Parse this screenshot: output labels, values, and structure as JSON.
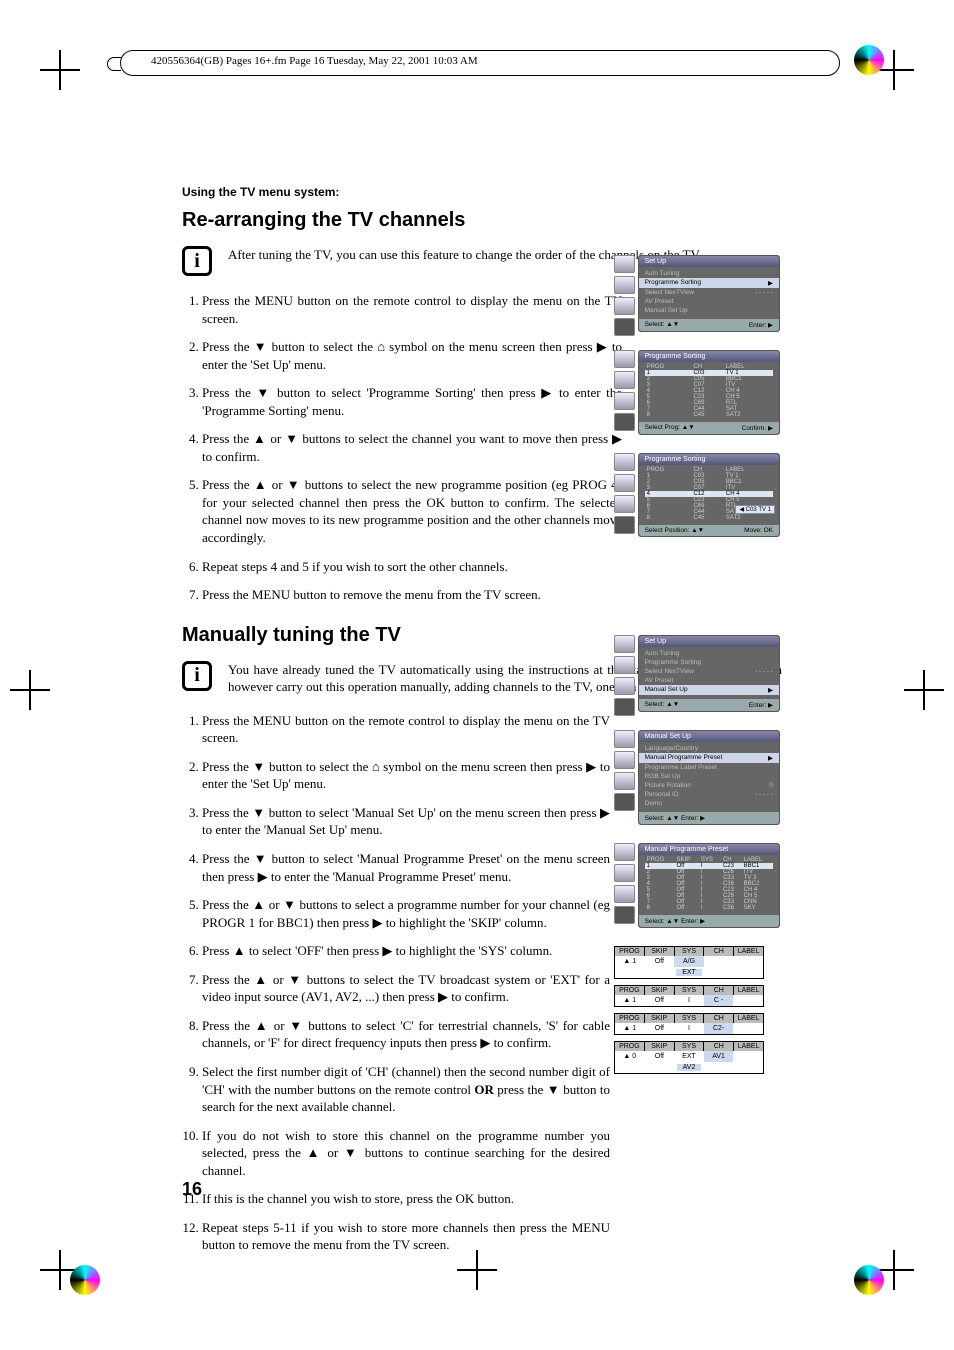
{
  "header_strip": "420556364(GB) Pages 16+.fm  Page 16  Tuesday, May 22, 2001  10:03 AM",
  "section_label": "Using the TV menu system:",
  "h2_rearr": "Re-arranging the TV channels",
  "info_rearr": "After tuning the TV, you can use this feature to change the order of the channels on the TV.",
  "steps_rearr": [
    "Press the MENU button on the remote control to display the menu on the TV screen.",
    "Press the ▼ button to select the ⌂ symbol on the menu screen then press ▶ to enter the 'Set Up' menu.",
    "Press the ▼ button to select 'Programme Sorting' then press ▶ to enter the 'Programme Sorting' menu.",
    "Press the ▲ or ▼ buttons to select the channel you want to move then  press ▶ to confirm.",
    "Press the ▲ or ▼ buttons to select the new programme position (eg PROG 4) for your selected channel then press the OK button to confirm. The selected channel now moves to its new programme position and the other channels move accordingly.",
    "Repeat steps 4 and 5 if you wish to sort the other channels.",
    "Press the MENU button to remove the menu from the TV screen."
  ],
  "h2_manual": "Manually tuning the TV",
  "info_manual": "You have already tuned the TV automatically using the instructions at the start of this manual. You can however carry out this operation manually, adding channels to the TV, one at a time.",
  "steps_manual": [
    "Press the MENU button on the remote control to display the menu on the TV screen.",
    "Press the ▼ button to select the ⌂  symbol on the menu screen then press ▶ to enter the 'Set Up' menu.",
    "Press the ▼ button to select 'Manual Set Up' on the menu screen then press ▶ to enter the 'Manual Set Up' menu.",
    "Press the ▼ button to select 'Manual Programme Preset' on the menu screen then press ▶ to enter the 'Manual Programme Preset' menu.",
    "Press the ▲ or ▼ buttons to select a programme number for your channel (eg PROGR 1 for BBC1) then press ▶ to highlight the 'SKIP' column.",
    "Press ▲ to select 'OFF' then press ▶ to highlight the 'SYS' column.",
    "Press the ▲ or ▼ buttons to select the TV broadcast system or 'EXT' for a video input source (AV1, AV2, ...) then press ▶ to confirm.",
    "Press the ▲ or ▼ buttons to select 'C' for terrestrial channels, 'S' for cable channels, or 'F' for direct frequency inputs then press ▶ to confirm.",
    "Select the first number digit of 'CH' (channel) then the second number digit of 'CH' with the number buttons on the remote control OR press the ▼ button to search for the next available channel.",
    "If you do not wish to store this channel on the programme number you selected, press the ▲ or ▼ buttons to continue searching for the desired channel.",
    "If this is the channel you wish to store, press the OK button.",
    "Repeat steps 5-11 if you wish to store more channels then press the MENU button to remove the menu from the TV screen."
  ],
  "page_number": "16",
  "menu1": {
    "title": "Set Up",
    "items": [
      "Auto Tuning",
      "Programme Sorting",
      "Select NexTView",
      "AV Preset",
      "Manual Set Up"
    ],
    "hi": 1,
    "extra": "- - - - -",
    "foot_l": "Select: ▲▼",
    "foot_r": "Enter: ▶"
  },
  "menu2": {
    "title": "Programme Sorting",
    "cols": [
      "PROG",
      "CH",
      "LABEL"
    ],
    "rows": [
      [
        "1",
        "C03",
        "TV 1"
      ],
      [
        "2",
        "C05",
        "BBC1"
      ],
      [
        "3",
        "C07",
        "ITV"
      ],
      [
        "4",
        "C12",
        "CH 4"
      ],
      [
        "5",
        "C23",
        "CH 5"
      ],
      [
        "6",
        "C69",
        "RTL"
      ],
      [
        "7",
        "C44",
        "SAT"
      ],
      [
        "8",
        "C45",
        "SAT2"
      ]
    ],
    "hi": 0,
    "foot_l": "Select Prog: ▲▼",
    "foot_r": "Confirm: ▶"
  },
  "menu3": {
    "title": "Programme Sorting",
    "cols": [
      "PROG",
      "CH",
      "LABEL"
    ],
    "rows": [
      [
        "1",
        "C03",
        "TV 1"
      ],
      [
        "2",
        "C05",
        "BBC1"
      ],
      [
        "3",
        "C07",
        "ITV"
      ],
      [
        "4",
        "C12",
        "CH 4"
      ],
      [
        "5",
        "C23",
        "CH 5"
      ],
      [
        "6",
        "C69",
        "RTL"
      ],
      [
        "7",
        "C44",
        "SAT"
      ],
      [
        "8",
        "C45",
        "SAT2"
      ]
    ],
    "hi": 3,
    "badge": "C03   TV 1",
    "foot_l": "Select Position: ▲▼",
    "foot_r": "Move: OK"
  },
  "menu4": {
    "title": "Set Up",
    "items": [
      "Auto Tuning",
      "Programme Sorting",
      "Select NexTView",
      "AV Preset",
      "Manual Set Up"
    ],
    "hi": 4,
    "extra": "- - - - -",
    "foot_l": "Select: ▲▼",
    "foot_r": "Enter: ▶"
  },
  "menu5": {
    "title": "Manual Set Up",
    "items": [
      "Language/Country",
      "Manual Programme Preset",
      "Programme Label Preset",
      "RGB Set Up",
      "Picture Rotation",
      "Personal ID",
      "Demo"
    ],
    "hi": 1,
    "rot": "0",
    "pid": "- - - - -",
    "foot_l": "Select: ▲▼ Enter: ▶",
    "foot_r": ""
  },
  "menu6": {
    "title": "Manual Programme Preset",
    "cols": [
      "PROG",
      "SKIP",
      "SYS",
      "CH",
      "LABEL"
    ],
    "rows": [
      [
        "1",
        "Off",
        "I",
        "C23",
        "BBC1"
      ],
      [
        "2",
        "Off",
        "I",
        "C26",
        "ITV"
      ],
      [
        "3",
        "Off",
        "I",
        "C33",
        "TV 3"
      ],
      [
        "4",
        "Off",
        "I",
        "C36",
        "BBC2"
      ],
      [
        "5",
        "Off",
        "I",
        "C23",
        "CH 4"
      ],
      [
        "6",
        "Off",
        "I",
        "C26",
        "CH 5"
      ],
      [
        "7",
        "Off",
        "I",
        "C33",
        "CNN"
      ],
      [
        "8",
        "Off",
        "I",
        "C36",
        "SKY"
      ]
    ],
    "hi": 0,
    "foot_l": "Select: ▲▼ Enter: ▶",
    "foot_r": ""
  },
  "mini_cols": [
    "PROG",
    "SKIP",
    "SYS",
    "CH",
    "LABEL"
  ],
  "mini1": {
    "r": [
      "▲ 1",
      "Off",
      "A/G",
      "",
      ""
    ],
    "hi": 2,
    "extra": "EXT"
  },
  "mini2": {
    "r": [
      "▲ 1",
      "Off",
      "I",
      "C -",
      ""
    ],
    "hi": 3
  },
  "mini3": {
    "r": [
      "▲ 1",
      "Off",
      "I",
      "C2-",
      ""
    ],
    "hi": 3
  },
  "mini4": {
    "r": [
      "▲ 0",
      "Off",
      "EXT",
      "AV1",
      ""
    ],
    "hi": 3,
    "extra": "AV2"
  }
}
